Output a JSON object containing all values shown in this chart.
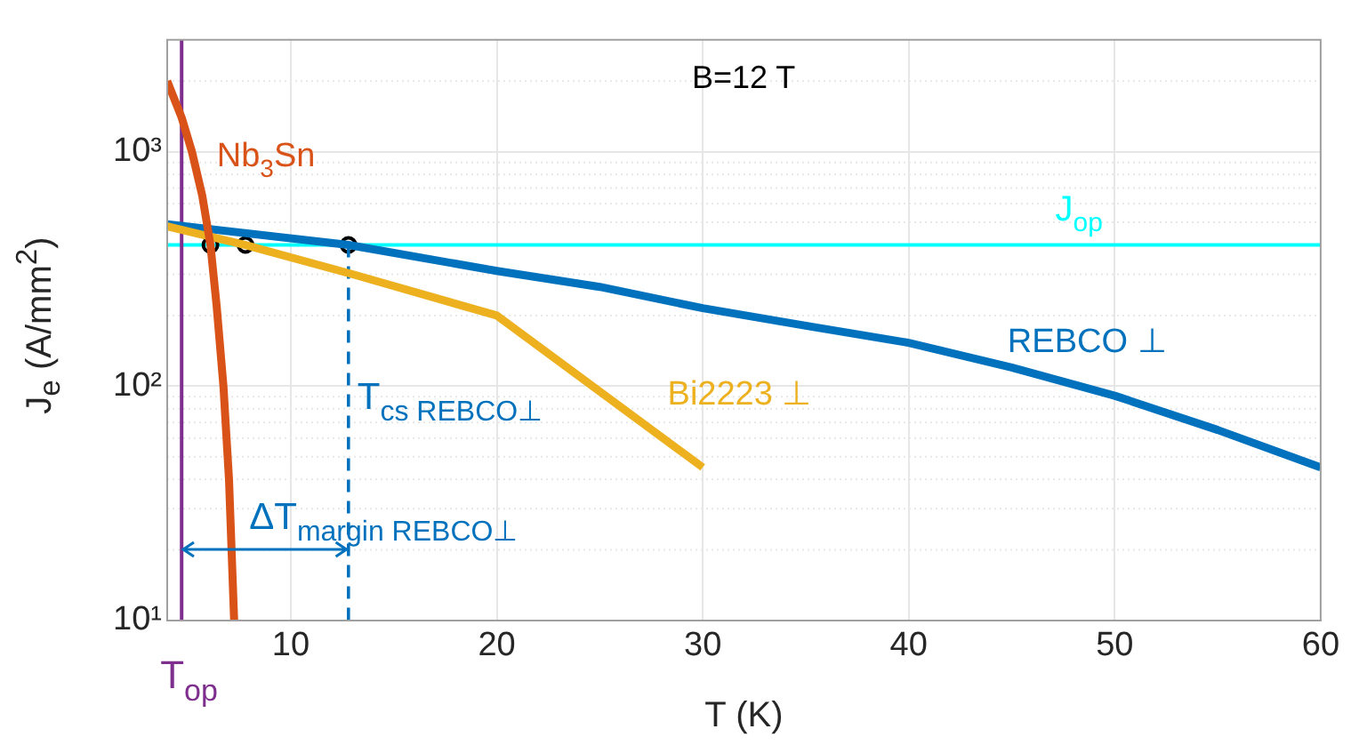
{
  "chart_data": {
    "type": "line",
    "xlabel": "T (K)",
    "ylabel": "J$_{e}$ (A/mm$^{2}$)",
    "log": "y",
    "grid": true,
    "xlim": [
      4,
      60
    ],
    "xticks": [
      10,
      20,
      30,
      40,
      50,
      60
    ],
    "ylim": [
      10,
      3000
    ],
    "yticks": [
      {
        "value": 10,
        "label": "10¹"
      },
      {
        "value": 100,
        "label": "10²"
      },
      {
        "value": 1000,
        "label": "10³"
      }
    ],
    "series": [
      {
        "name": "Nb$_{3}$Sn",
        "color": "#d95319",
        "marker": "none",
        "x": [
          4,
          4.7,
          5.2,
          5.7,
          6.1,
          6.4,
          6.73,
          7.0,
          7.25
        ],
        "values": [
          2000,
          1400,
          1000,
          650,
          400,
          220,
          100,
          40,
          10
        ]
      },
      {
        "name": "Bi2223 ⊥",
        "color": "#edb120",
        "marker": "none",
        "x": [
          4,
          7.8,
          13,
          20,
          30
        ],
        "values": [
          480,
          400,
          300,
          200,
          45
        ]
      },
      {
        "name": "REBCO ⊥",
        "color": "#0072bd",
        "marker": "none",
        "x": [
          4,
          12.8,
          20,
          25,
          30,
          35,
          40,
          45,
          50,
          55,
          60
        ],
        "values": [
          490,
          400,
          310,
          265,
          215,
          181,
          153,
          120,
          91,
          65,
          45
        ]
      },
      {
        "color": "#0072bd",
        "marker": "none",
        "line_style": "dashed",
        "x": [
          12.8,
          12.8
        ],
        "values": [
          400,
          10
        ]
      },
      {
        "type": "scatter",
        "color": "#000000",
        "marker": "circle",
        "x": [
          6.1,
          7.8,
          12.8
        ],
        "values": [
          400,
          400,
          400
        ]
      }
    ],
    "ref_lines": [
      {
        "axis": "y",
        "value": 400,
        "label": "J$_{op}$",
        "color": "#00ffff"
      },
      {
        "axis": "x",
        "value": 4.7,
        "label": "T$_{op}$",
        "color": "#7e2f8e"
      }
    ],
    "annotations": [
      "B=12 T",
      {
        "text": "T$_{cs REBCO⊥}$",
        "x": 12.8,
        "y": 80
      },
      {
        "text": "ΔT$_{margin REBCO⊥}$",
        "x": 12.8,
        "y": 20
      }
    ]
  }
}
